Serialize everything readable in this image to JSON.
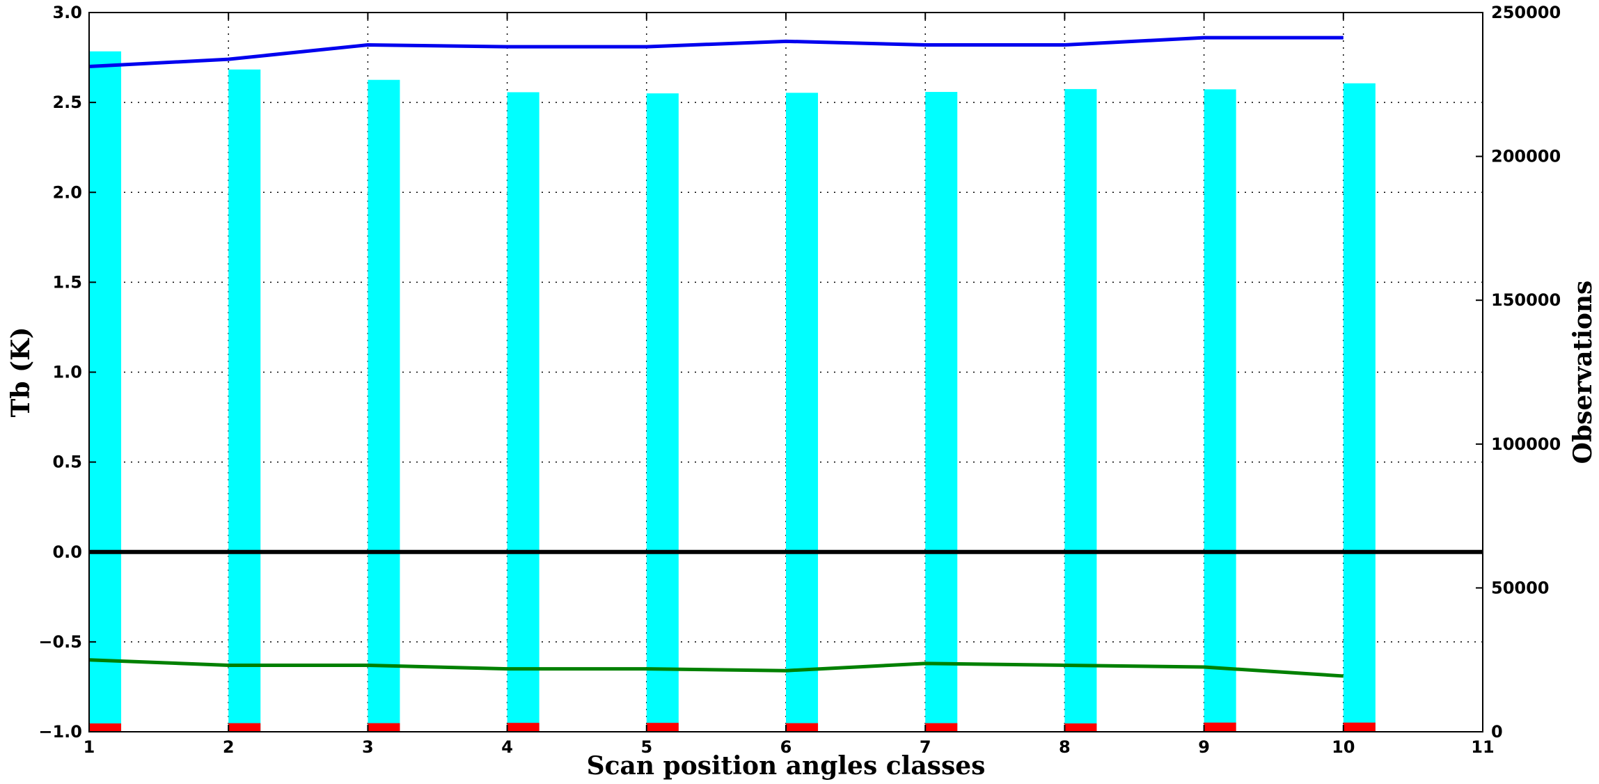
{
  "chart_data": {
    "type": "bar",
    "title": "",
    "xlabel": "Scan position angles classes",
    "ylabel": "Tb (K)",
    "y2label": "Observations",
    "xlim": [
      1,
      11
    ],
    "ylim": [
      -1.0,
      3.0
    ],
    "y2lim": [
      0,
      250000
    ],
    "grid": true,
    "x_ticks": [
      "1",
      "2",
      "3",
      "4",
      "5",
      "6",
      "7",
      "8",
      "9",
      "10",
      "11"
    ],
    "y_ticks": [
      "−1.0",
      "−0.5",
      "0.0",
      "0.5",
      "1.0",
      "1.5",
      "2.0",
      "2.5",
      "3.0"
    ],
    "y2_ticks": [
      "0",
      "50000",
      "100000",
      "150000",
      "200000",
      "250000"
    ],
    "bar_width": 0.23,
    "reference_line": {
      "y": 0.0,
      "color": "#000000"
    },
    "categories": [
      1,
      2,
      3,
      4,
      5,
      6,
      7,
      8,
      9,
      10
    ],
    "series": [
      {
        "axis": "right",
        "kind": "bar",
        "color": "#00ffff",
        "values": [
          236500,
          230200,
          226600,
          222300,
          221900,
          222100,
          222400,
          223400,
          223300,
          225400
        ]
      },
      {
        "axis": "right",
        "kind": "bar",
        "color": "#ff0000",
        "values": [
          2900,
          3000,
          3000,
          3100,
          3100,
          3000,
          3000,
          2900,
          3200,
          3200
        ]
      },
      {
        "axis": "left",
        "kind": "line",
        "color": "#0000ee",
        "values": [
          2.7,
          2.74,
          2.82,
          2.81,
          2.81,
          2.84,
          2.82,
          2.82,
          2.86,
          2.86
        ]
      },
      {
        "axis": "left",
        "kind": "line",
        "color": "#008000",
        "values": [
          -0.6,
          -0.63,
          -0.63,
          -0.65,
          -0.65,
          -0.66,
          -0.62,
          -0.63,
          -0.64,
          -0.69
        ]
      }
    ]
  }
}
